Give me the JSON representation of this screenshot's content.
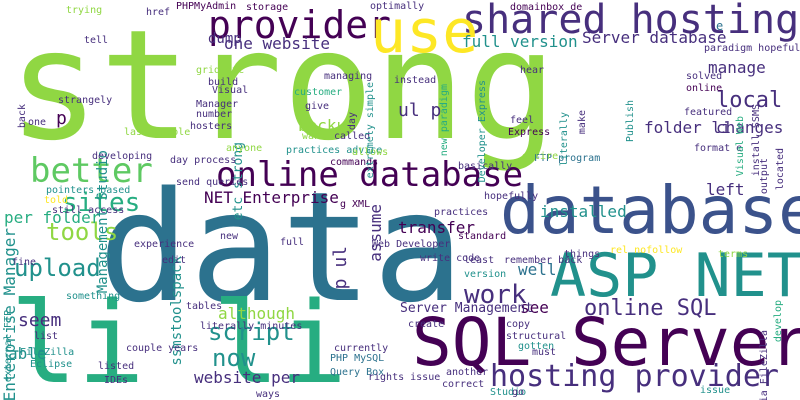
{
  "palette": {
    "purple": "#440154",
    "indigo": "#472f7d",
    "blue": "#3b528b",
    "steel": "#2c728e",
    "teal": "#21918c",
    "green": "#27ad81",
    "lime": "#5ec962",
    "lightgreen": "#90d743",
    "yellow": "#fde725",
    "chartreuse": "#aadc32"
  },
  "words": [
    "strong",
    "data",
    "li li",
    "database",
    "SQL Server",
    "ASP NET",
    "shared hosting",
    "provider",
    "use",
    "online database",
    "hosting provider",
    "better",
    "online SQL",
    "sites",
    "tools",
    "work",
    "upload",
    "script",
    "now",
    "Server database",
    "one website",
    "full version",
    "backup",
    "manage",
    "local",
    "folder li",
    "changes",
    "transfer",
    "installed",
    "left",
    "assume",
    "p ul",
    "ul p",
    "p",
    "see",
    "well",
    "seem",
    "although",
    "website per",
    "able",
    "per folder",
    "Enterprise Manager",
    "Management Studio",
    "ssmstoolspack",
    "etc strong",
    "NET Enterprise",
    "Server Management",
    "PHP MySQL",
    "Query Box",
    "rights issue",
    "FileZilla",
    "Eclipse",
    "IDEs",
    "listed",
    "couple years",
    "dump",
    "PHPMyAdmin",
    "storage",
    "optimally",
    "domainbox de",
    "trying",
    "href",
    "tell",
    "strangely",
    "grid etc",
    "build",
    "Visual",
    "Manager",
    "number",
    "hosters",
    "day process",
    "send queries",
    "anyone",
    "want",
    "called",
    "practices advice",
    "allows",
    "commands",
    "basically",
    "g XML",
    "write code",
    "hopefully",
    "customer",
    "give",
    "managing",
    "extremely simple",
    "new paradigm",
    "Developer Express",
    "Express",
    "FTP program",
    "format e",
    "solved",
    "online",
    "featured",
    "Visual Web",
    "install SSMS",
    "paradigm hopefully",
    "pointers based",
    "still access",
    "told",
    "experience",
    "edit",
    "new",
    "full",
    "fine",
    "something",
    "external FTP",
    "Web Developer",
    "standard",
    "things",
    "rel nofollow",
    "terms",
    "remember back",
    "least",
    "version",
    "copy",
    "structural",
    "gotten",
    "must",
    "create",
    "currently",
    "another",
    "correct",
    "Studio",
    "go",
    "ways",
    "issue",
    "via FileZilla",
    "literally minutes",
    "tables",
    "list",
    "one",
    "back",
    "developing",
    "last couple",
    "day",
    "instead",
    "hear",
    "feel",
    "make",
    "Publish",
    "output",
    "practices",
    "develop",
    "literally",
    "located",
    "entire",
    "e",
    "SQL"
  ]
}
